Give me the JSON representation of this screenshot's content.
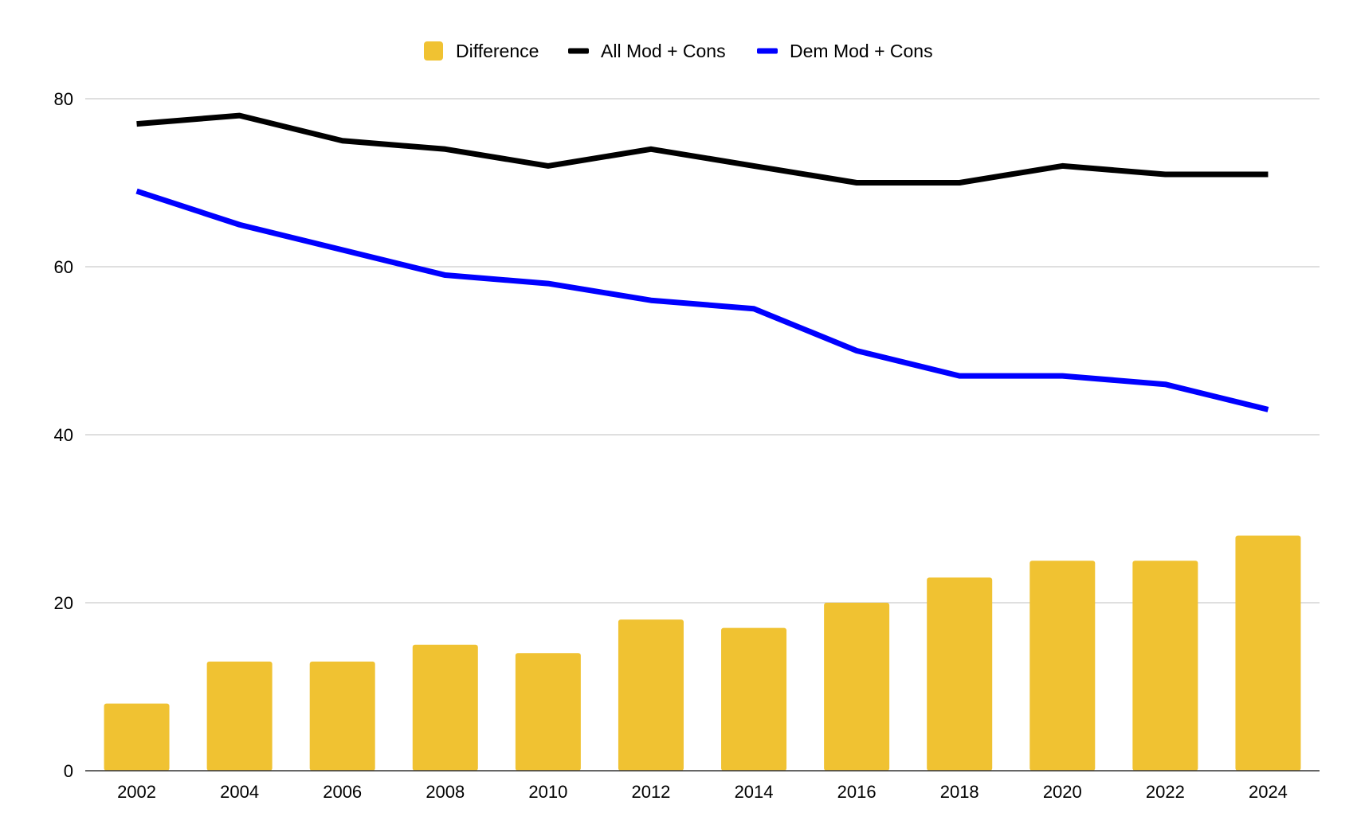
{
  "chart_data": {
    "type": "bar+line",
    "title": "",
    "xlabel": "",
    "ylabel": "",
    "categories": [
      "2002",
      "2004",
      "2006",
      "2008",
      "2010",
      "2012",
      "2014",
      "2016",
      "2018",
      "2020",
      "2022",
      "2024"
    ],
    "ylim": [
      0,
      80
    ],
    "yticks": [
      0,
      20,
      40,
      60,
      80
    ],
    "grid": true,
    "legend_position": "top-center",
    "series": [
      {
        "name": "Difference",
        "kind": "bar",
        "color": "#F0C232",
        "values": [
          8,
          13,
          13,
          15,
          14,
          18,
          17,
          20,
          23,
          25,
          25,
          28
        ]
      },
      {
        "name": "All Mod + Cons",
        "kind": "line",
        "color": "#000000",
        "values": [
          77,
          78,
          75,
          74,
          72,
          74,
          72,
          70,
          70,
          72,
          71,
          71
        ]
      },
      {
        "name": "Dem Mod + Cons",
        "kind": "line",
        "color": "#0000FF",
        "values": [
          69,
          65,
          62,
          59,
          58,
          56,
          55,
          50,
          47,
          47,
          46,
          43
        ]
      }
    ]
  }
}
